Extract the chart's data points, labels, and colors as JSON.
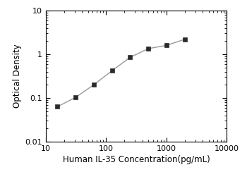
{
  "x": [
    15.625,
    31.25,
    62.5,
    125,
    250,
    500,
    1000,
    2000
  ],
  "y": [
    0.063,
    0.103,
    0.2,
    0.42,
    0.85,
    1.35,
    1.6,
    2.2
  ],
  "xlabel": "Human IL-35 Concentration(pg/mL)",
  "ylabel": "Optical Density",
  "xlim": [
    10,
    10000
  ],
  "ylim": [
    0.01,
    10
  ],
  "marker": "s",
  "marker_color": "#2a2a2a",
  "line_color": "#999999",
  "line_style": "-",
  "marker_size": 5,
  "line_width": 1.0,
  "xlabel_fontsize": 8.5,
  "ylabel_fontsize": 8.5,
  "tick_fontsize": 8,
  "background_color": "#ffffff"
}
